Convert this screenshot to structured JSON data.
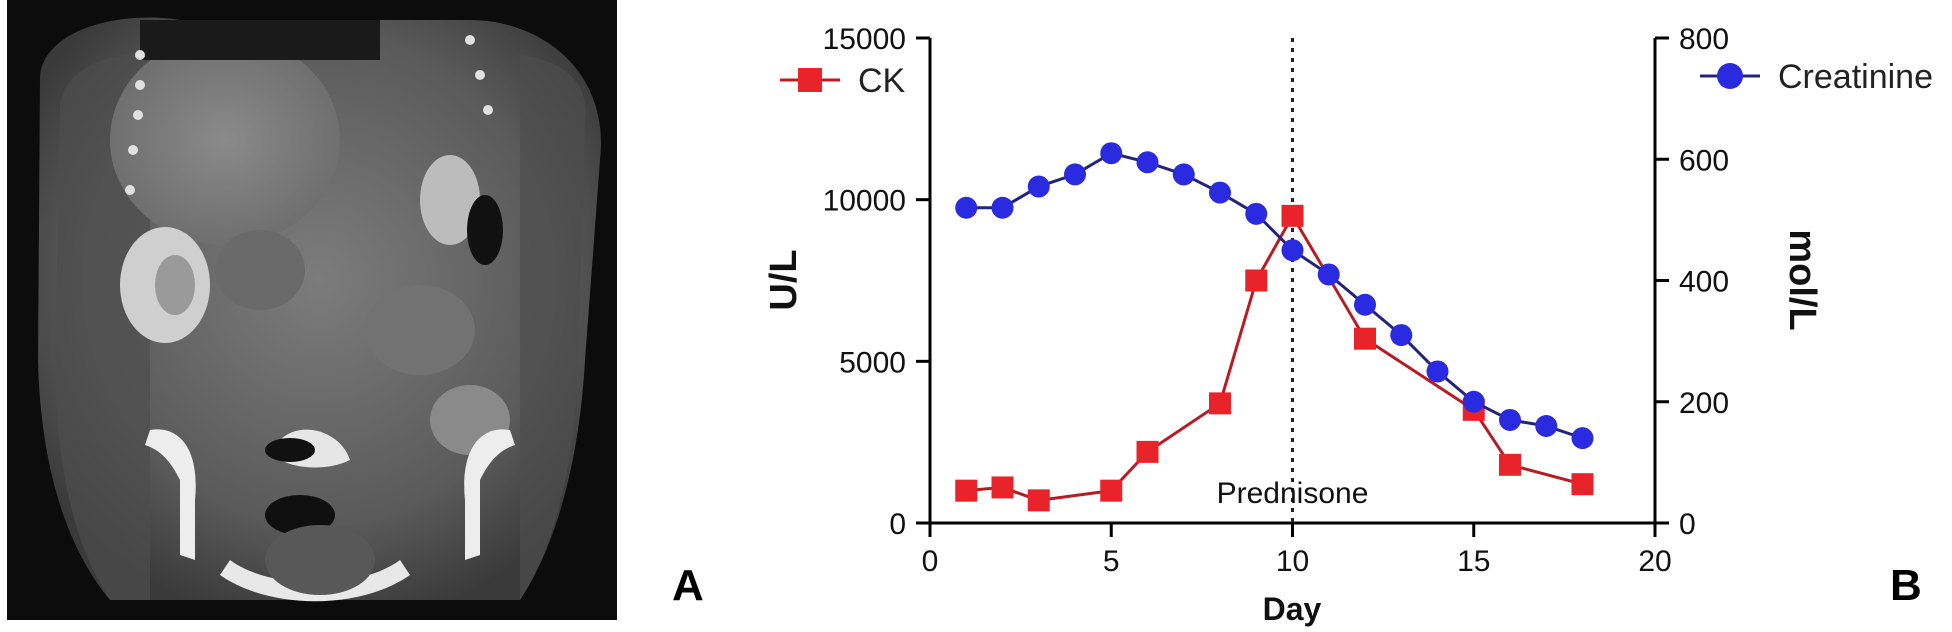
{
  "panels": {
    "a_label": "A",
    "b_label": "B"
  },
  "ct_image": {
    "description_icon": "ct-scan-image"
  },
  "colors": {
    "ck": "#e8232a",
    "ck_line": "#b81c22",
    "creatinine": "#2a2ae0",
    "creatinine_line": "#23237a",
    "axis": "#000000"
  },
  "chart_data": {
    "type": "line",
    "xlabel": "Day",
    "ylabel_left": "U/L",
    "ylabel_right": "mol/L",
    "xlim": [
      0,
      20
    ],
    "ylim_left": [
      0,
      15000
    ],
    "ylim_right": [
      0,
      800
    ],
    "xticks": [
      0,
      5,
      10,
      15,
      20
    ],
    "yticks_left": [
      0,
      5000,
      10000,
      15000
    ],
    "yticks_right": [
      0,
      200,
      400,
      600,
      800
    ],
    "grid": false,
    "legend": [
      "top-left",
      "top-right"
    ],
    "annotation": {
      "text": "Prednisone",
      "x": 10
    },
    "series": [
      {
        "name": "CK",
        "axis": "left",
        "marker": "square",
        "x": [
          1,
          2,
          3,
          5,
          6,
          8,
          9,
          10,
          12,
          15,
          16,
          18
        ],
        "y": [
          1000,
          1100,
          700,
          1000,
          2200,
          3700,
          7500,
          9500,
          5700,
          3500,
          1800,
          1200
        ]
      },
      {
        "name": "Creatinine",
        "axis": "right",
        "marker": "circle",
        "x": [
          1,
          2,
          3,
          4,
          5,
          6,
          7,
          8,
          9,
          10,
          11,
          12,
          13,
          14,
          15,
          16,
          17,
          18
        ],
        "y": [
          520,
          520,
          555,
          575,
          610,
          595,
          575,
          545,
          510,
          450,
          410,
          360,
          310,
          250,
          200,
          170,
          160,
          140
        ]
      }
    ]
  }
}
